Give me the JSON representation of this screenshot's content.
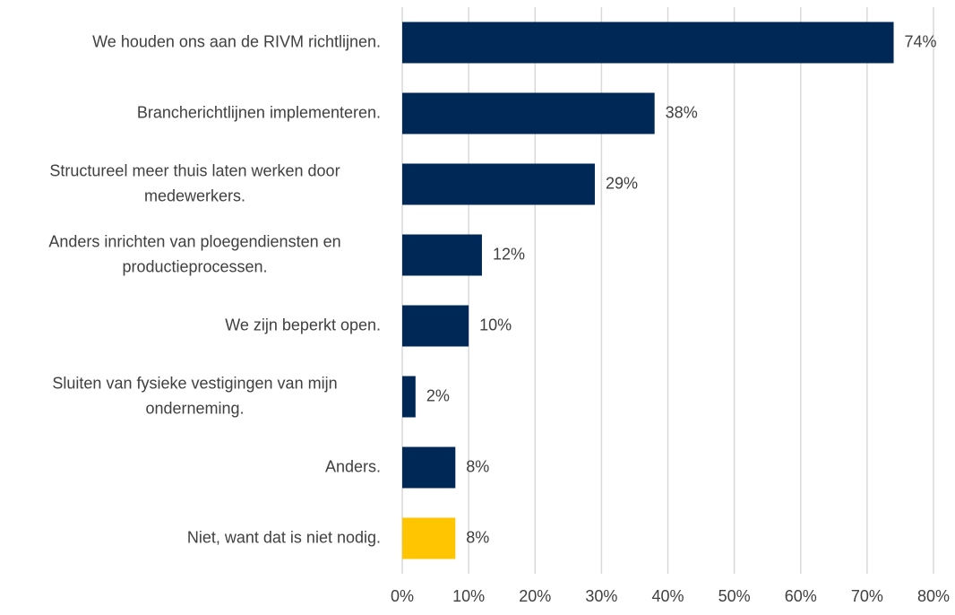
{
  "chart_data": {
    "type": "bar",
    "orientation": "horizontal",
    "categories": [
      "We houden ons aan de RIVM richtlijnen.",
      "Brancherichtlijnen implementeren.",
      "Structureel meer thuis laten werken door medewerkers.",
      "Anders inrichten van ploegendiensten en productieprocessen.",
      "We zijn beperkt open.",
      "Sluiten van fysieke vestigingen van mijn onderneming.",
      "Anders.",
      "Niet, want dat is niet nodig."
    ],
    "values": [
      74,
      38,
      29,
      12,
      10,
      2,
      8,
      8
    ],
    "value_labels": [
      "74%",
      "38%",
      "29%",
      "12%",
      "10%",
      "2%",
      "8%",
      "8%"
    ],
    "colors": [
      "#002856",
      "#002856",
      "#002856",
      "#002856",
      "#002856",
      "#002856",
      "#002856",
      "#ffc600"
    ],
    "xlim": [
      0,
      80
    ],
    "xticks": [
      {
        "value": 0,
        "label": "0%"
      },
      {
        "value": 10,
        "label": "10%"
      },
      {
        "value": 20,
        "label": "20%"
      },
      {
        "value": 30,
        "label": "30%"
      },
      {
        "value": 40,
        "label": "40%"
      },
      {
        "value": 50,
        "label": "50%"
      },
      {
        "value": 60,
        "label": "60%"
      },
      {
        "value": 70,
        "label": "70%"
      },
      {
        "value": 80,
        "label": "80%"
      }
    ],
    "grid": true
  }
}
